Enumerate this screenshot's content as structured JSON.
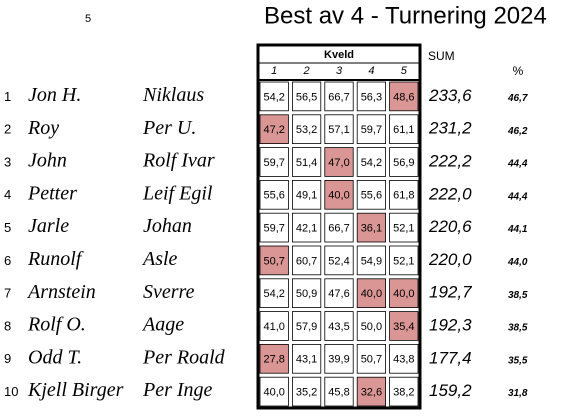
{
  "header": {
    "page": "5",
    "title": "Best av 4 - Turnering 2024",
    "group_label": "Kveld",
    "rounds": [
      "1",
      "2",
      "3",
      "4",
      "5"
    ],
    "sum_label": "SUM",
    "pct_label": "%"
  },
  "table": {
    "highlight_color": "#da9694",
    "rows": [
      {
        "rank": "1",
        "first": "Jon H.",
        "last": "Niklaus",
        "scores": [
          "54,2",
          "56,5",
          "66,7",
          "56,3",
          "48,6"
        ],
        "highlight": [
          4
        ],
        "sum": "233,6",
        "pct": "46,7"
      },
      {
        "rank": "2",
        "first": "Roy",
        "last": "Per U.",
        "scores": [
          "47,2",
          "53,2",
          "57,1",
          "59,7",
          "61,1"
        ],
        "highlight": [
          0
        ],
        "sum": "231,2",
        "pct": "46,2"
      },
      {
        "rank": "3",
        "first": "John",
        "last": "Rolf Ivar",
        "scores": [
          "59,7",
          "51,4",
          "47,0",
          "54,2",
          "56,9"
        ],
        "highlight": [
          2
        ],
        "sum": "222,2",
        "pct": "44,4"
      },
      {
        "rank": "4",
        "first": "Petter",
        "last": "Leif Egil",
        "scores": [
          "55,6",
          "49,1",
          "40,0",
          "55,6",
          "61,8"
        ],
        "highlight": [
          2
        ],
        "sum": "222,0",
        "pct": "44,4"
      },
      {
        "rank": "5",
        "first": "Jarle",
        "last": "Johan",
        "scores": [
          "59,7",
          "42,1",
          "66,7",
          "36,1",
          "52,1"
        ],
        "highlight": [
          3
        ],
        "sum": "220,6",
        "pct": "44,1"
      },
      {
        "rank": "6",
        "first": "Runolf",
        "last": "Asle",
        "scores": [
          "50,7",
          "60,7",
          "52,4",
          "54,9",
          "52,1"
        ],
        "highlight": [
          0
        ],
        "sum": "220,0",
        "pct": "44,0"
      },
      {
        "rank": "7",
        "first": "Arnstein",
        "last": "Sverre",
        "scores": [
          "54,2",
          "50,9",
          "47,6",
          "40,0",
          "40,0"
        ],
        "highlight": [
          3,
          4
        ],
        "sum": "192,7",
        "pct": "38,5"
      },
      {
        "rank": "8",
        "first": "Rolf O.",
        "last": "Aage",
        "scores": [
          "41,0",
          "57,9",
          "43,5",
          "50,0",
          "35,4"
        ],
        "highlight": [
          4
        ],
        "sum": "192,3",
        "pct": "38,5"
      },
      {
        "rank": "9",
        "first": "Odd T.",
        "last": "Per Roald",
        "scores": [
          "27,8",
          "43,1",
          "39,9",
          "50,7",
          "43,8"
        ],
        "highlight": [
          0
        ],
        "sum": "177,4",
        "pct": "35,5"
      },
      {
        "rank": "10",
        "first": "Kjell Birger",
        "last": "Per Inge",
        "scores": [
          "40,0",
          "35,2",
          "45,8",
          "32,6",
          "38,2"
        ],
        "highlight": [
          3
        ],
        "sum": "159,2",
        "pct": "31,8"
      }
    ]
  }
}
